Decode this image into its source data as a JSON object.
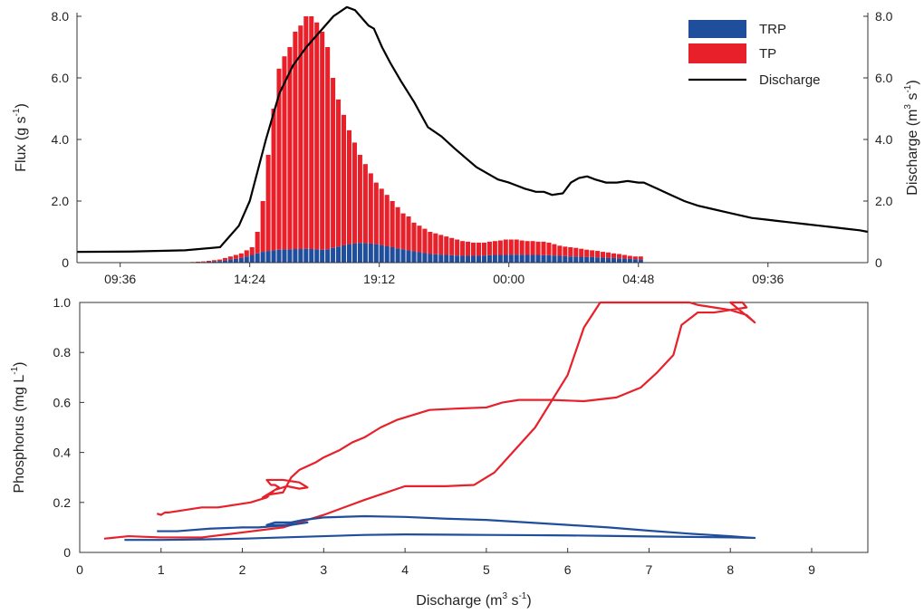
{
  "chart_data": [
    {
      "type": "bar",
      "subtype": "stacked bar + line (dual y-axis)",
      "title": "",
      "xlabel": "",
      "ylabel_left": {
        "text": "Flux (g s",
        "sup": "-1",
        "suffix": ")"
      },
      "ylabel_right": {
        "text": "Discharge (m",
        "sup1": "3",
        "mid": " s",
        "sup2": "-1",
        "suffix": ")"
      },
      "x_tick_labels": [
        "09:36",
        "14:24",
        "19:12",
        "00:00",
        "04:48",
        "09:36"
      ],
      "x_tick_hours": [
        9.6,
        14.4,
        19.2,
        24.0,
        28.8,
        33.6
      ],
      "x_range_hours": [
        8.0,
        37.3
      ],
      "y_left_ticks": [
        "0",
        "2.0",
        "4.0",
        "6.0",
        "8.0"
      ],
      "y_right_ticks": [
        "0",
        "2.0",
        "4.0",
        "6.0",
        "8.0"
      ],
      "ylim_left": [
        0,
        8
      ],
      "ylim_right": [
        0,
        8
      ],
      "legend_position": "top-right",
      "grid": false,
      "legend": [
        {
          "label": "TRP",
          "color": "#1f4e9c",
          "kind": "bar"
        },
        {
          "label": "TP",
          "color": "#e8202a",
          "kind": "bar"
        },
        {
          "label": "Discharge",
          "color": "#000000",
          "kind": "line"
        }
      ],
      "bar_series": {
        "bar_start_hour": 12.2,
        "bar_step_hours": 0.2,
        "TP_total_gs": [
          0.02,
          0.03,
          0.04,
          0.06,
          0.08,
          0.1,
          0.15,
          0.2,
          0.25,
          0.3,
          0.4,
          0.5,
          1.0,
          2.0,
          3.5,
          5.0,
          6.3,
          6.7,
          7.0,
          7.5,
          7.7,
          8.0,
          8.0,
          7.8,
          7.5,
          7.0,
          6.0,
          5.3,
          4.8,
          4.3,
          3.9,
          3.5,
          3.2,
          2.9,
          2.6,
          2.4,
          2.2,
          2.0,
          1.8,
          1.6,
          1.5,
          1.3,
          1.2,
          1.1,
          1.0,
          0.95,
          0.9,
          0.85,
          0.8,
          0.75,
          0.7,
          0.68,
          0.65,
          0.65,
          0.65,
          0.68,
          0.7,
          0.72,
          0.75,
          0.75,
          0.75,
          0.72,
          0.7,
          0.7,
          0.68,
          0.68,
          0.65,
          0.6,
          0.55,
          0.52,
          0.5,
          0.48,
          0.45,
          0.42,
          0.4,
          0.38,
          0.35,
          0.33,
          0.3,
          0.28,
          0.25,
          0.22,
          0.2,
          0.2
        ],
        "TRP_gs": [
          0.01,
          0.01,
          0.02,
          0.03,
          0.04,
          0.05,
          0.07,
          0.1,
          0.12,
          0.15,
          0.2,
          0.25,
          0.3,
          0.35,
          0.38,
          0.4,
          0.42,
          0.43,
          0.43,
          0.44,
          0.44,
          0.45,
          0.44,
          0.43,
          0.42,
          0.43,
          0.48,
          0.52,
          0.56,
          0.6,
          0.62,
          0.64,
          0.63,
          0.62,
          0.6,
          0.57,
          0.53,
          0.5,
          0.46,
          0.43,
          0.4,
          0.37,
          0.34,
          0.31,
          0.28,
          0.27,
          0.26,
          0.25,
          0.24,
          0.23,
          0.22,
          0.22,
          0.22,
          0.22,
          0.23,
          0.24,
          0.25,
          0.25,
          0.25,
          0.26,
          0.26,
          0.26,
          0.25,
          0.25,
          0.25,
          0.24,
          0.24,
          0.23,
          0.22,
          0.21,
          0.2,
          0.2,
          0.19,
          0.18,
          0.18,
          0.17,
          0.16,
          0.15,
          0.15,
          0.14,
          0.13,
          0.12,
          0.11,
          0.1
        ]
      },
      "discharge_line": {
        "x_hours": [
          8.0,
          10.0,
          12.0,
          13.3,
          14.0,
          14.4,
          15.0,
          15.5,
          16.0,
          16.5,
          17.0,
          17.5,
          18.0,
          18.3,
          18.5,
          18.8,
          19.0,
          19.3,
          19.6,
          20.0,
          20.5,
          21.0,
          21.5,
          22.0,
          22.4,
          22.8,
          23.2,
          23.6,
          24.0,
          24.3,
          24.6,
          24.8,
          25.0,
          25.3,
          25.6,
          26.0,
          26.3,
          26.6,
          26.9,
          27.2,
          27.6,
          28.0,
          28.4,
          28.8,
          29.0,
          29.5,
          30.0,
          30.5,
          31.0,
          31.5,
          32.0,
          32.5,
          33.0,
          33.5,
          34.0,
          34.5,
          35.0,
          35.5,
          36.0,
          36.5,
          37.0,
          37.3
        ],
        "y_discharge": [
          0.35,
          0.36,
          0.4,
          0.5,
          1.2,
          2.0,
          4.0,
          5.5,
          6.4,
          7.0,
          7.5,
          8.0,
          8.3,
          8.2,
          8.0,
          7.7,
          7.6,
          7.0,
          6.5,
          5.9,
          5.2,
          4.4,
          4.1,
          3.7,
          3.4,
          3.1,
          2.9,
          2.7,
          2.6,
          2.5,
          2.4,
          2.35,
          2.3,
          2.3,
          2.2,
          2.25,
          2.6,
          2.75,
          2.8,
          2.7,
          2.6,
          2.6,
          2.65,
          2.6,
          2.6,
          2.4,
          2.2,
          2.0,
          1.85,
          1.75,
          1.65,
          1.55,
          1.45,
          1.4,
          1.35,
          1.3,
          1.25,
          1.2,
          1.15,
          1.1,
          1.05,
          1.0
        ]
      }
    },
    {
      "type": "line",
      "subtype": "hysteresis loops",
      "title": "",
      "xlabel": {
        "text": "Discharge (m",
        "sup1": "3",
        "mid": " s",
        "sup2": "-1",
        "suffix": ")"
      },
      "ylabel": {
        "text": "Phosphorus (mg L",
        "sup": "-1",
        "suffix": ")"
      },
      "x_tick_labels": [
        "0",
        "1",
        "2",
        "3",
        "4",
        "5",
        "6",
        "7",
        "8",
        "9"
      ],
      "y_tick_labels": [
        "0",
        "0.2",
        "0.4",
        "0.6",
        "0.8",
        "1.0"
      ],
      "xlim": [
        0,
        9
      ],
      "ylim": [
        0,
        1.0
      ],
      "grid": false,
      "series": [
        {
          "name": "TP",
          "color": "#e8202a",
          "x": [
            0.95,
            1.0,
            1.05,
            1.1,
            1.3,
            1.5,
            1.7,
            1.9,
            2.1,
            2.2,
            2.3,
            2.4,
            2.45,
            2.4,
            2.35,
            2.3,
            2.5,
            2.7,
            2.8,
            2.7,
            2.55,
            2.4,
            2.3,
            2.25,
            2.3,
            2.5,
            2.6,
            2.7,
            2.9,
            3.0,
            3.2,
            3.35,
            3.5,
            3.7,
            3.9,
            4.1,
            4.3,
            4.6,
            5.0,
            5.2,
            5.4,
            5.8,
            6.2,
            6.6,
            6.9,
            7.1,
            7.3,
            7.4,
            7.6,
            7.8,
            8.0,
            8.2,
            8.15,
            8.0,
            8.3,
            8.2,
            8.0,
            7.8,
            7.6,
            7.5,
            7.1,
            6.7,
            6.4,
            6.2,
            6.0,
            5.6,
            5.1,
            4.85,
            4.5,
            4.0,
            3.5,
            3.0,
            2.5,
            2.0,
            1.5,
            1.0,
            0.6,
            0.45,
            0.3
          ],
          "y": [
            0.155,
            0.15,
            0.16,
            0.16,
            0.17,
            0.18,
            0.18,
            0.19,
            0.2,
            0.21,
            0.22,
            0.25,
            0.26,
            0.27,
            0.27,
            0.29,
            0.29,
            0.28,
            0.26,
            0.255,
            0.265,
            0.25,
            0.23,
            0.22,
            0.23,
            0.24,
            0.3,
            0.33,
            0.36,
            0.38,
            0.41,
            0.44,
            0.46,
            0.5,
            0.53,
            0.55,
            0.57,
            0.575,
            0.58,
            0.6,
            0.61,
            0.61,
            0.605,
            0.62,
            0.66,
            0.72,
            0.79,
            0.91,
            0.96,
            0.96,
            0.97,
            0.98,
            1.0,
            1.0,
            0.92,
            0.95,
            0.97,
            0.98,
            0.99,
            1.0,
            1.0,
            1.0,
            1.0,
            0.9,
            0.71,
            0.5,
            0.32,
            0.27,
            0.265,
            0.265,
            0.21,
            0.15,
            0.1,
            0.08,
            0.06,
            0.06,
            0.065,
            0.06,
            0.055
          ]
        },
        {
          "name": "TRP",
          "color": "#1f4e9c",
          "x": [
            0.55,
            1.0,
            1.5,
            2.0,
            2.5,
            3.0,
            3.5,
            4.0,
            4.5,
            5.0,
            5.5,
            6.0,
            6.5,
            7.0,
            7.5,
            8.0,
            8.3,
            8.2,
            8.0,
            7.5,
            7.0,
            6.5,
            6.0,
            5.5,
            5.0,
            4.5,
            4.0,
            3.5,
            3.0,
            2.75,
            2.6,
            2.4,
            2.3,
            2.5,
            2.7,
            2.8,
            2.6,
            2.4,
            2.2,
            2.0,
            1.6,
            1.2,
            0.95
          ],
          "y": [
            0.05,
            0.05,
            0.052,
            0.055,
            0.06,
            0.065,
            0.07,
            0.072,
            0.071,
            0.07,
            0.069,
            0.068,
            0.066,
            0.064,
            0.062,
            0.06,
            0.058,
            0.06,
            0.065,
            0.075,
            0.087,
            0.1,
            0.11,
            0.12,
            0.13,
            0.135,
            0.142,
            0.145,
            0.14,
            0.13,
            0.12,
            0.12,
            0.11,
            0.11,
            0.115,
            0.12,
            0.11,
            0.105,
            0.1,
            0.1,
            0.095,
            0.085,
            0.085
          ]
        }
      ]
    }
  ]
}
